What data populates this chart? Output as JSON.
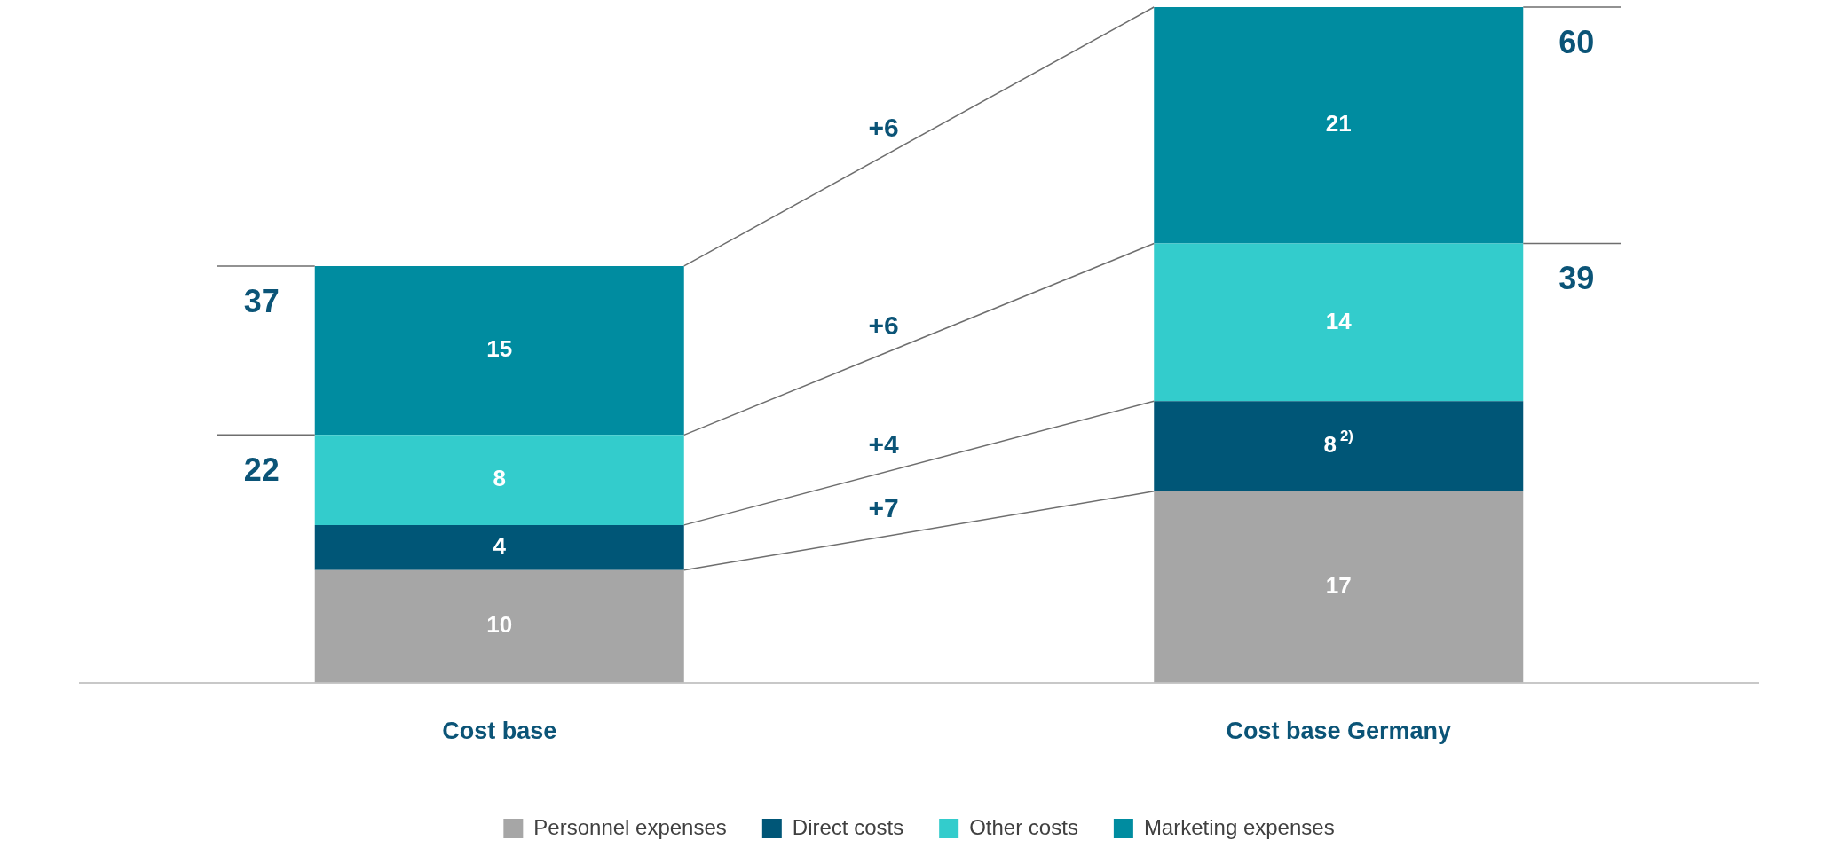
{
  "chart_data": {
    "type": "bar",
    "stacked": true,
    "categories": [
      "Cost base",
      "Cost base Germany"
    ],
    "series": [
      {
        "name": "Personnel expenses",
        "color": "#a6a6a6",
        "values": [
          10,
          17
        ],
        "value_labels": [
          "10",
          "17"
        ]
      },
      {
        "name": "Direct costs",
        "color": "#005677",
        "values": [
          4,
          8
        ],
        "value_labels": [
          "4",
          "8$^{2)}$"
        ]
      },
      {
        "name": "Other costs",
        "color": "#33cccc",
        "values": [
          8,
          14
        ],
        "value_labels": [
          "8",
          "14"
        ]
      },
      {
        "name": "Marketing expenses",
        "color": "#008ca0",
        "values": [
          15,
          21
        ],
        "value_labels": [
          "15",
          "21"
        ]
      }
    ],
    "totals": [
      "37",
      "60"
    ],
    "annotations": [
      "22",
      "39",
      "+6",
      "+6",
      "+4",
      "+7"
    ],
    "legend": "bottom",
    "grid": false
  }
}
